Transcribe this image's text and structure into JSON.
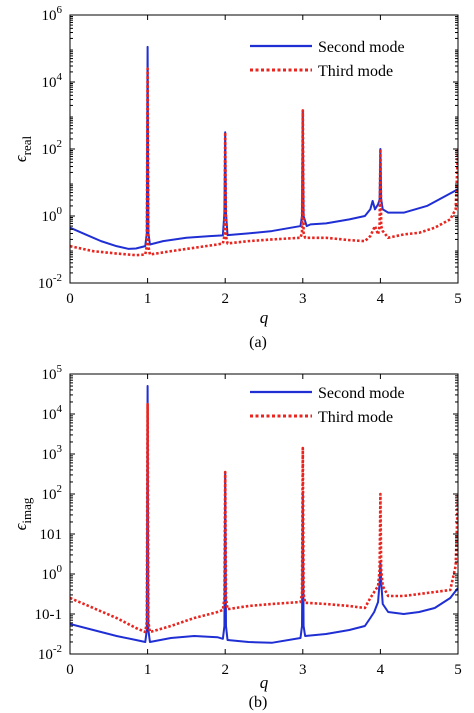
{
  "chart_data": [
    {
      "type": "line",
      "panel_label": "(a)",
      "xlabel": "q",
      "ylabel": "ε_real",
      "ylabel_main": "ϵ",
      "ylabel_sub": "real",
      "xlim": [
        0,
        5
      ],
      "ylim_log10": [
        -2,
        6
      ],
      "yscale": "log",
      "x_ticks": [
        "0",
        "1",
        "2",
        "3",
        "4",
        "5"
      ],
      "y_ticks": [
        {
          "base": "10",
          "exp": "-2",
          "value": -2
        },
        {
          "base": "10",
          "exp": "0",
          "value": 0
        },
        {
          "base": "10",
          "exp": "2",
          "value": 2
        },
        {
          "base": "10",
          "exp": "4",
          "value": 4
        },
        {
          "base": "10",
          "exp": "6",
          "value": 6
        }
      ],
      "legend_position": "top-right",
      "series": [
        {
          "name": "Second mode",
          "color": "#1f2fd4",
          "style": "solid",
          "x": [
            0,
            0.2,
            0.4,
            0.6,
            0.75,
            0.85,
            0.97,
            0.99,
            1.0,
            1.01,
            1.03,
            1.2,
            1.5,
            1.8,
            1.97,
            1.99,
            2.0,
            2.01,
            2.03,
            2.3,
            2.6,
            2.97,
            2.99,
            3.0,
            3.01,
            3.05,
            3.1,
            3.3,
            3.6,
            3.8,
            3.87,
            3.9,
            3.93,
            3.97,
            3.99,
            4.0,
            4.01,
            4.03,
            4.1,
            4.3,
            4.6,
            4.8,
            5.0
          ],
          "y_log10": [
            -0.35,
            -0.55,
            -0.75,
            -0.9,
            -0.98,
            -0.97,
            -0.9,
            -0.5,
            5.05,
            -0.5,
            -0.85,
            -0.75,
            -0.65,
            -0.6,
            -0.58,
            0.1,
            2.5,
            0.1,
            -0.57,
            -0.52,
            -0.45,
            -0.3,
            0.0,
            3.1,
            0.0,
            -0.3,
            -0.25,
            -0.22,
            -0.1,
            0.0,
            0.2,
            0.45,
            0.2,
            0.35,
            0.5,
            2.0,
            0.5,
            0.2,
            0.1,
            0.1,
            0.3,
            0.55,
            0.8
          ]
        },
        {
          "name": "Third mode",
          "color": "#e8251f",
          "style": "dotted",
          "x": [
            0,
            0.3,
            0.6,
            0.85,
            0.97,
            0.99,
            1.0,
            1.01,
            1.03,
            1.3,
            1.6,
            1.9,
            1.97,
            1.99,
            2.0,
            2.01,
            2.03,
            2.3,
            2.6,
            2.97,
            2.99,
            3.0,
            3.01,
            3.03,
            3.3,
            3.6,
            3.8,
            3.87,
            3.9,
            3.93,
            3.97,
            3.99,
            4.0,
            4.01,
            4.03,
            4.1,
            4.3,
            4.5,
            4.7,
            4.9,
            4.97,
            5.0
          ],
          "y_log10": [
            -0.9,
            -1.05,
            -1.12,
            -1.17,
            -1.15,
            -0.9,
            4.4,
            -0.9,
            -1.15,
            -1.05,
            -0.95,
            -0.85,
            -0.82,
            -0.6,
            2.5,
            -0.6,
            -0.82,
            -0.75,
            -0.7,
            -0.65,
            -0.5,
            3.15,
            -0.5,
            -0.65,
            -0.65,
            -0.72,
            -0.75,
            -0.6,
            -0.45,
            -0.3,
            -0.55,
            -0.3,
            2.0,
            -0.3,
            -0.45,
            -0.65,
            -0.55,
            -0.5,
            -0.35,
            -0.1,
            0.2,
            2.0
          ]
        }
      ]
    },
    {
      "type": "line",
      "panel_label": "(b)",
      "xlabel": "q",
      "ylabel": "ε_imag",
      "ylabel_main": "ϵ",
      "ylabel_sub": "imag",
      "xlim": [
        0,
        5
      ],
      "ylim_log10": [
        -2,
        5
      ],
      "yscale": "log",
      "x_ticks": [
        "0",
        "1",
        "2",
        "3",
        "4",
        "5"
      ],
      "y_ticks": [
        {
          "base": "10",
          "exp": "-2",
          "value": -2
        },
        {
          "base": "10-1",
          "exp": "",
          "value": -1
        },
        {
          "base": "10",
          "exp": "0",
          "value": 0
        },
        {
          "base": "101",
          "exp": "",
          "value": 1
        },
        {
          "base": "10",
          "exp": "2",
          "value": 2
        },
        {
          "base": "10",
          "exp": "3",
          "value": 3
        },
        {
          "base": "10",
          "exp": "4",
          "value": 4
        },
        {
          "base": "10",
          "exp": "5",
          "value": 5
        }
      ],
      "legend_position": "top-right",
      "series": [
        {
          "name": "Second mode",
          "color": "#1f2fd4",
          "style": "solid",
          "x": [
            0,
            0.3,
            0.6,
            0.85,
            0.97,
            0.99,
            1.0,
            1.01,
            1.03,
            1.3,
            1.6,
            1.9,
            1.97,
            1.99,
            2.0,
            2.01,
            2.03,
            2.3,
            2.6,
            2.97,
            2.99,
            3.0,
            3.01,
            3.03,
            3.3,
            3.6,
            3.8,
            3.87,
            3.92,
            3.97,
            3.99,
            4.0,
            4.01,
            4.03,
            4.1,
            4.3,
            4.5,
            4.7,
            4.9,
            5.0
          ],
          "y_log10": [
            -1.25,
            -1.4,
            -1.55,
            -1.65,
            -1.7,
            -1.4,
            4.7,
            -1.4,
            -1.7,
            -1.6,
            -1.55,
            -1.58,
            -1.62,
            -1.3,
            2.5,
            -1.3,
            -1.65,
            -1.7,
            -1.72,
            -1.6,
            -1.3,
            2.0,
            -1.3,
            -1.55,
            -1.5,
            -1.4,
            -1.3,
            -1.1,
            -0.95,
            -0.7,
            -0.2,
            0.3,
            -0.2,
            -0.75,
            -0.95,
            -1.0,
            -0.95,
            -0.85,
            -0.6,
            -0.35
          ]
        },
        {
          "name": "Third mode",
          "color": "#e8251f",
          "style": "dotted",
          "x": [
            0,
            0.3,
            0.6,
            0.85,
            0.97,
            0.99,
            1.0,
            1.01,
            1.03,
            1.3,
            1.6,
            1.9,
            1.97,
            1.99,
            2.0,
            2.01,
            2.03,
            2.3,
            2.6,
            2.97,
            2.99,
            3.0,
            3.01,
            3.03,
            3.3,
            3.6,
            3.8,
            3.87,
            3.92,
            3.97,
            3.99,
            4.0,
            4.01,
            4.03,
            4.1,
            4.3,
            4.5,
            4.7,
            4.9,
            4.97,
            5.0
          ],
          "y_log10": [
            -0.6,
            -0.85,
            -1.1,
            -1.35,
            -1.45,
            -1.2,
            4.25,
            -1.2,
            -1.45,
            -1.3,
            -1.1,
            -0.95,
            -0.9,
            -0.6,
            2.55,
            -0.6,
            -0.88,
            -0.8,
            -0.75,
            -0.7,
            -0.5,
            3.15,
            -0.5,
            -0.72,
            -0.75,
            -0.8,
            -0.85,
            -0.6,
            -0.45,
            -0.3,
            0.1,
            2.0,
            0.1,
            -0.3,
            -0.55,
            -0.55,
            -0.5,
            -0.45,
            -0.4,
            0.2,
            2.0
          ]
        }
      ]
    }
  ]
}
